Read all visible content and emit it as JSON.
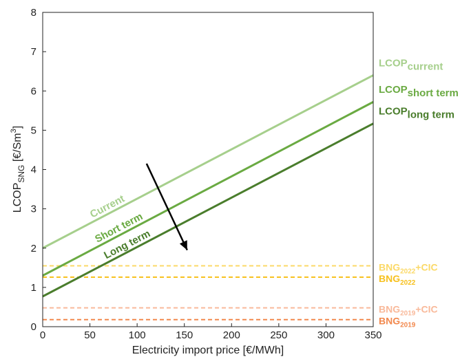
{
  "chart_data": {
    "type": "line",
    "xlabel": "Electricity import price [€/MWh]",
    "ylabel": {
      "main": "LCOP",
      "sub": "SNG",
      "unit_pre": " [€/Sm",
      "unit_sup": "3",
      "unit_post": "]"
    },
    "xlim": [
      0,
      350
    ],
    "ylim": [
      0,
      8
    ],
    "xticks": [
      "0",
      "50",
      "100",
      "150",
      "200",
      "250",
      "300",
      "350"
    ],
    "yticks": [
      "0",
      "1",
      "2",
      "3",
      "4",
      "5",
      "6",
      "7",
      "8"
    ],
    "grid": false,
    "series": [
      {
        "key": "current",
        "color": "#a6cf8c",
        "x": [
          0,
          350
        ],
        "y": [
          2.0,
          6.4
        ],
        "inline_label": "Current",
        "right_label": {
          "main": "LCOP",
          "sub": "current"
        }
      },
      {
        "key": "short",
        "color": "#6aaa42",
        "x": [
          0,
          350
        ],
        "y": [
          1.3,
          5.72
        ],
        "inline_label": "Short term",
        "right_label": {
          "main": "LCOP",
          "sub": "short term"
        }
      },
      {
        "key": "long",
        "color": "#4a7d2c",
        "x": [
          0,
          350
        ],
        "y": [
          0.77,
          5.17
        ],
        "inline_label": "Long term",
        "right_label": {
          "main": "LCOP",
          "sub": "long term"
        }
      }
    ],
    "references": [
      {
        "key": "bng2022cic",
        "color": "#fbd967",
        "y": 1.55,
        "label": {
          "main": "BNG",
          "sub": "2022",
          "suffix": "+CIC"
        }
      },
      {
        "key": "bng2022",
        "color": "#f7c11e",
        "y": 1.26,
        "label": {
          "main": "BNG",
          "sub": "2022",
          "suffix": ""
        }
      },
      {
        "key": "bng2019cic",
        "color": "#f9b99a",
        "y": 0.48,
        "label": {
          "main": "BNG",
          "sub": "2019",
          "suffix": "+CIC"
        }
      },
      {
        "key": "bng2019",
        "color": "#f2884d",
        "y": 0.18,
        "label": {
          "main": "BNG",
          "sub": "2019",
          "suffix": ""
        }
      }
    ],
    "arrow": {
      "from": [
        110,
        4.15
      ],
      "to": [
        153,
        1.95
      ],
      "color": "#000000"
    }
  }
}
